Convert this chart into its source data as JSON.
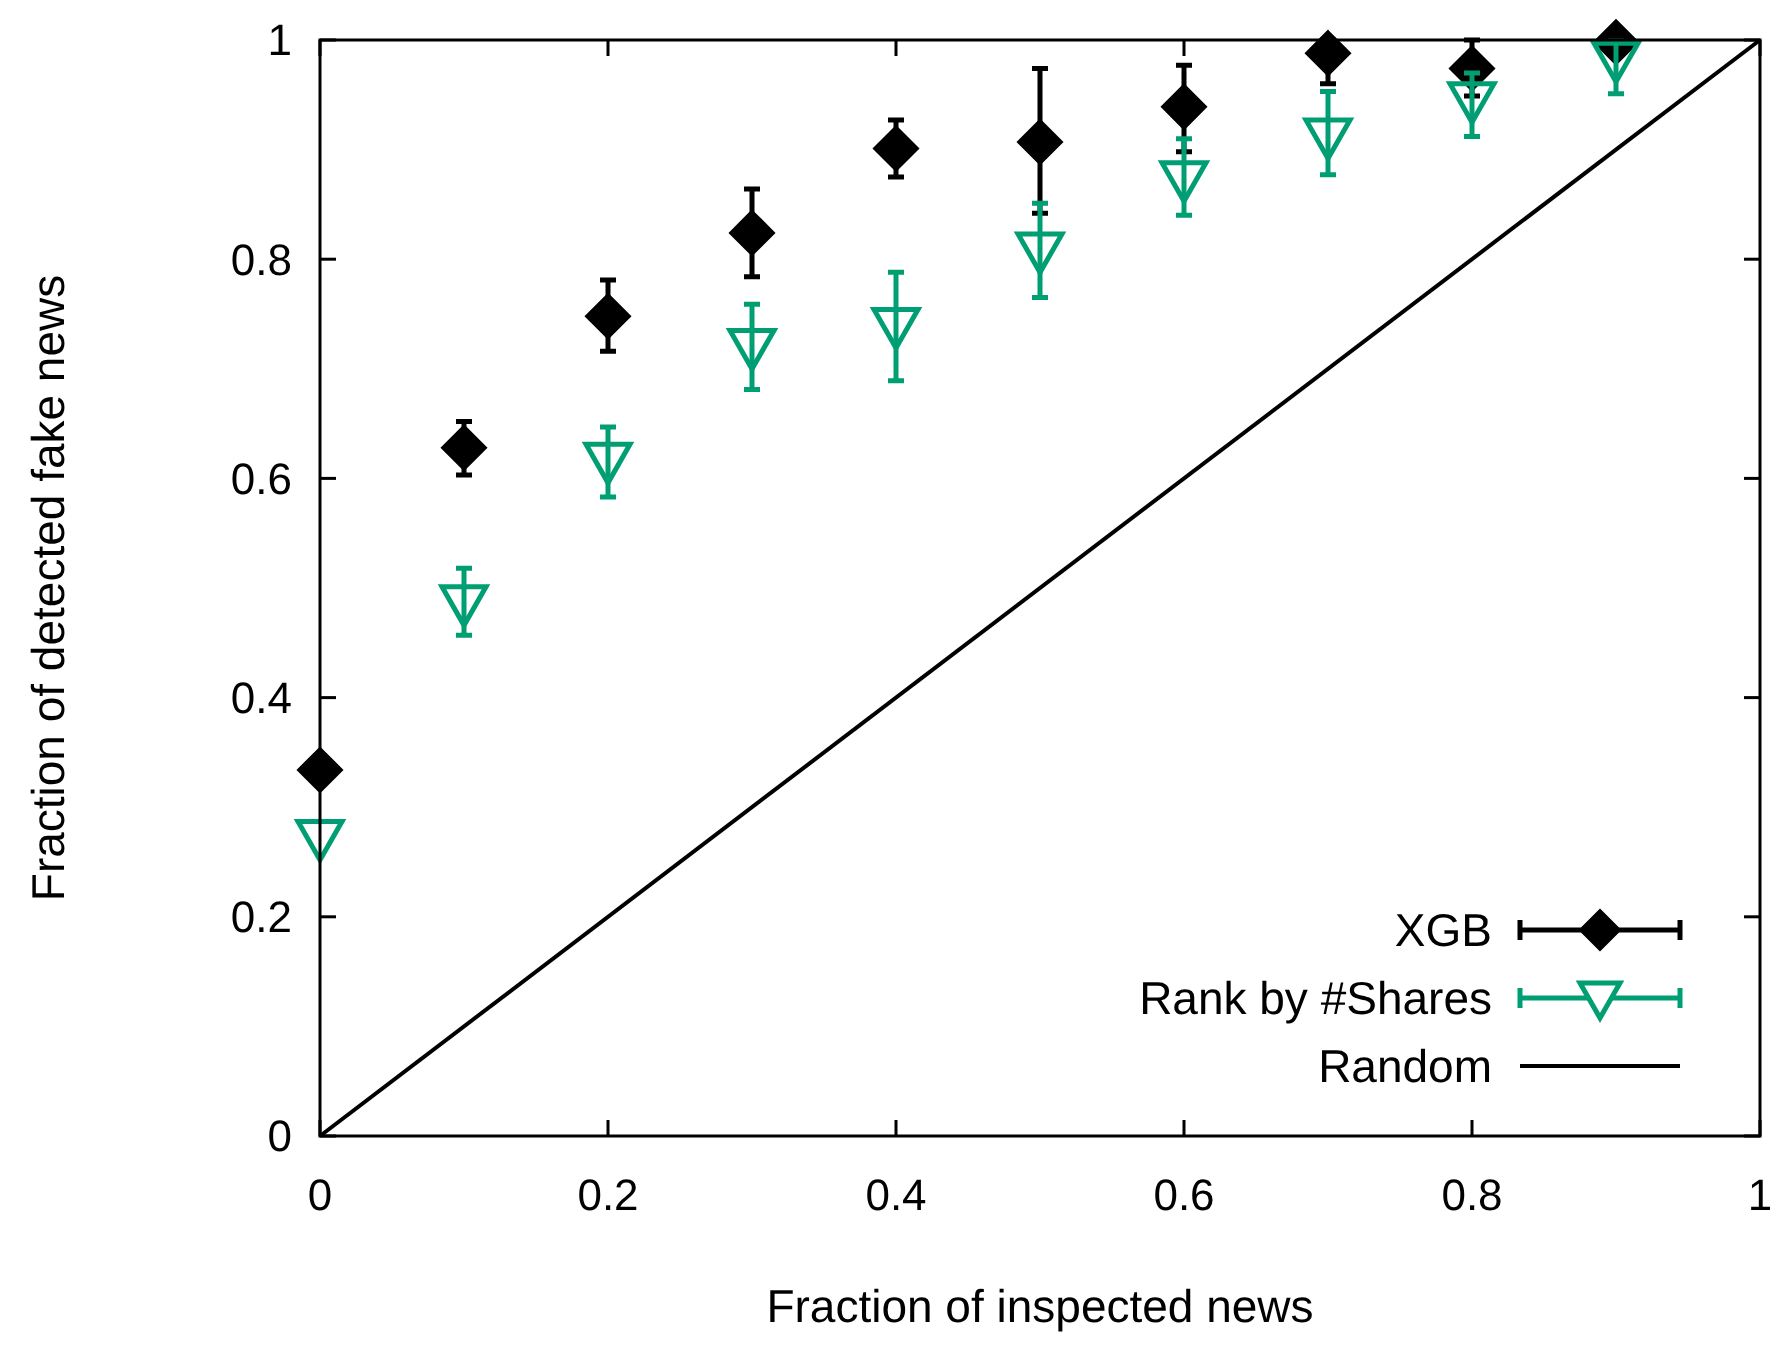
{
  "chart_data": {
    "type": "scatter",
    "xlabel": "Fraction of inspected news",
    "ylabel": "Fraction of detected fake news",
    "xlim": [
      0,
      1
    ],
    "ylim": [
      0,
      1
    ],
    "xticks": [
      0,
      0.2,
      0.4,
      0.6,
      0.8,
      1
    ],
    "yticks": [
      0,
      0.2,
      0.4,
      0.6,
      0.8,
      1
    ],
    "grid": false,
    "legend": "bottom right",
    "x": [
      0,
      0.1,
      0.2,
      0.3,
      0.4,
      0.5,
      0.6,
      0.7,
      0.8,
      0.9
    ],
    "series": [
      {
        "name": "XGB",
        "color": "#000000",
        "marker": "diamond",
        "values": [
          0.334,
          0.628,
          0.748,
          0.824,
          0.901,
          0.907,
          0.939,
          0.988,
          0.974,
          0.998
        ],
        "errors": [
          null,
          [
            0.603,
            0.652
          ],
          [
            0.716,
            0.781
          ],
          [
            0.784,
            0.864
          ],
          [
            0.875,
            0.927
          ],
          [
            0.842,
            0.974
          ],
          [
            0.898,
            0.977
          ],
          [
            0.96,
            1.0
          ],
          [
            0.949,
            1.0
          ],
          null
        ]
      },
      {
        "name": "Rank by #Shares",
        "color": "#009e73",
        "marker": "triangle",
        "values": [
          0.272,
          0.486,
          0.616,
          0.72,
          0.739,
          0.808,
          0.873,
          0.912,
          0.945,
          0.982
        ],
        "errors": [
          null,
          [
            0.457,
            0.518
          ],
          [
            0.583,
            0.647
          ],
          [
            0.681,
            0.759
          ],
          [
            0.689,
            0.788
          ],
          [
            0.765,
            0.851
          ],
          [
            0.84,
            0.91
          ],
          [
            0.877,
            0.953
          ],
          [
            0.912,
            0.97
          ],
          [
            0.951,
            0.999
          ]
        ]
      },
      {
        "name": "Random",
        "type": "line",
        "color": "#000000",
        "marker": "none",
        "line_style": "solid",
        "x": [
          0,
          1
        ],
        "values": [
          0,
          1
        ]
      }
    ]
  }
}
